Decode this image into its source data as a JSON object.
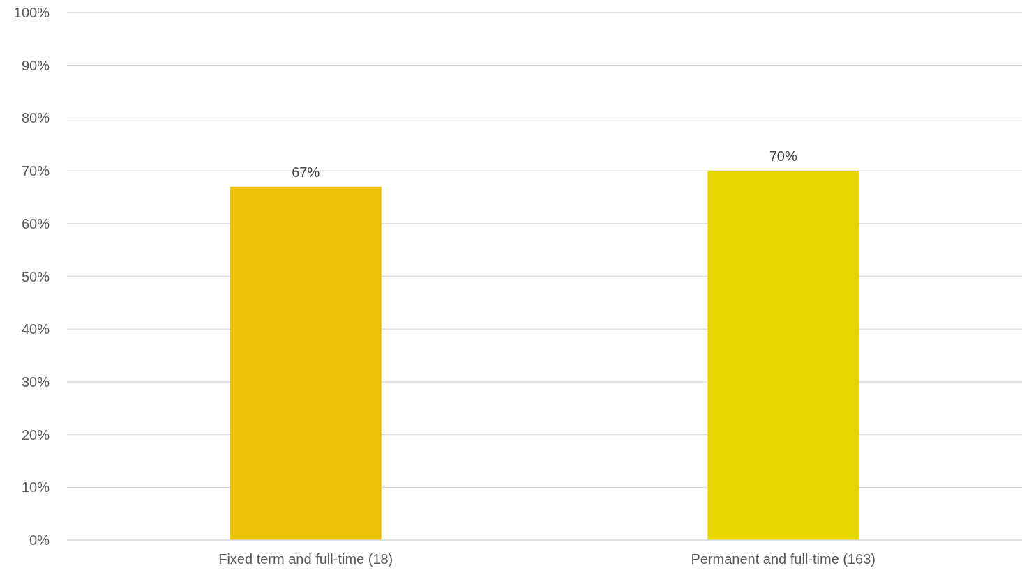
{
  "chart_data": {
    "type": "bar",
    "categories": [
      "Fixed term and full-time (18)",
      "Permanent and full-time (163)"
    ],
    "values": [
      67,
      70
    ],
    "colors": [
      "#ecc30b",
      "#e8d700"
    ],
    "value_labels": [
      "67%",
      "70%"
    ],
    "ylim": [
      0,
      100
    ],
    "yticks": [
      {
        "value": 0,
        "label": "0%"
      },
      {
        "value": 10,
        "label": "10%"
      },
      {
        "value": 20,
        "label": "20%"
      },
      {
        "value": 30,
        "label": "30%"
      },
      {
        "value": 40,
        "label": "40%"
      },
      {
        "value": 50,
        "label": "50%"
      },
      {
        "value": 60,
        "label": "60%"
      },
      {
        "value": 70,
        "label": "70%"
      },
      {
        "value": 80,
        "label": "80%"
      },
      {
        "value": 90,
        "label": "90%"
      },
      {
        "value": 100,
        "label": "100%"
      }
    ],
    "grid": "y"
  }
}
